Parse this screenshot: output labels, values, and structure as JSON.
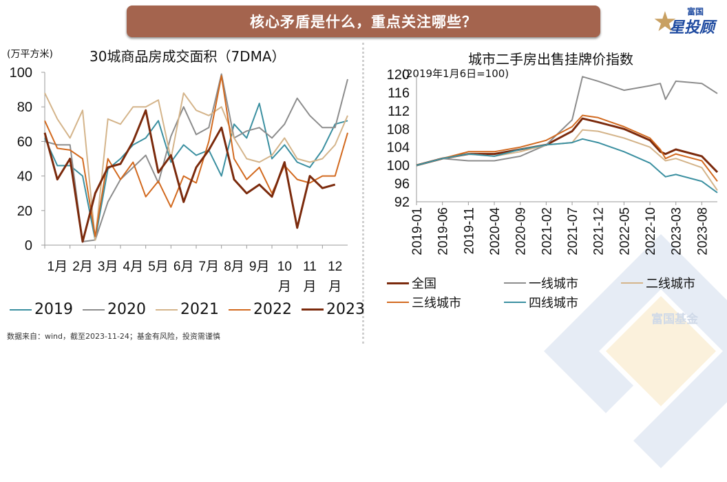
{
  "banner": {
    "title": "核心矛盾是什么，重点关注哪些？"
  },
  "logo": {
    "small": "富国",
    "big": "星投顾",
    "star_color": "#c8a062",
    "text_color": "#1e4aa0"
  },
  "watermark": {
    "text": "富国基金"
  },
  "footer": {
    "source": "数据来自：wind，截至2023-11-24；基金有风险，投资需谨慎"
  },
  "left_chart": {
    "unit": "(万平方米)",
    "title": "30城商品房成交面积（7DMA）"
  },
  "right_chart": {
    "title": "城市二手房出售挂牌价指数",
    "base_note": "(2019年1月6日=100)"
  },
  "chart_data": [
    {
      "type": "line",
      "title": "30城商品房成交面积（7DMA）",
      "ylabel": "(万平方米)",
      "xlabel": "",
      "ylim": [
        0,
        100
      ],
      "yticks": [
        0,
        20,
        40,
        60,
        80,
        100
      ],
      "x_tick_labels": [
        "1月",
        "2月",
        "3月",
        "4月",
        "5月",
        "6月",
        "7月",
        "8月",
        "9月",
        "10月",
        "11月",
        "12月"
      ],
      "x": [
        1,
        1.5,
        2,
        2.5,
        3,
        3.5,
        4,
        4.5,
        5,
        5.5,
        6,
        6.5,
        7,
        7.5,
        8,
        8.5,
        9,
        9.5,
        10,
        10.5,
        11,
        11.5,
        12,
        12.5,
        13
      ],
      "legend_position": "bottom",
      "series": [
        {
          "name": "2019",
          "color": "#3a8fa0",
          "values": [
            62,
            46,
            46,
            40,
            3,
            44,
            50,
            58,
            62,
            72,
            48,
            58,
            52,
            55,
            40,
            70,
            62,
            82,
            50,
            58,
            48,
            45,
            55,
            70,
            72
          ]
        },
        {
          "name": "2020",
          "color": "#8c8c8c",
          "values": [
            60,
            58,
            58,
            2,
            3,
            25,
            38,
            45,
            52,
            36,
            63,
            80,
            64,
            68,
            99,
            62,
            66,
            68,
            62,
            70,
            85,
            75,
            68,
            68,
            96
          ]
        },
        {
          "name": "2021",
          "color": "#d4b48a",
          "values": [
            88,
            73,
            62,
            78,
            3,
            73,
            70,
            80,
            80,
            84,
            50,
            88,
            78,
            75,
            80,
            62,
            50,
            48,
            52,
            62,
            50,
            48,
            50,
            58,
            75
          ]
        },
        {
          "name": "2022",
          "color": "#d2691e",
          "values": [
            72,
            56,
            55,
            50,
            5,
            50,
            38,
            48,
            28,
            37,
            22,
            40,
            36,
            60,
            98,
            50,
            38,
            45,
            30,
            46,
            38,
            36,
            40,
            40,
            65
          ]
        },
        {
          "name": "2023",
          "color": "#7b2a0c",
          "values": [
            65,
            38,
            50,
            2,
            30,
            45,
            47,
            60,
            78,
            42,
            52,
            25,
            45,
            55,
            68,
            38,
            30,
            35,
            28,
            48,
            10,
            40,
            33,
            35,
            null
          ]
        }
      ]
    },
    {
      "type": "line",
      "title": "城市二手房出售挂牌价指数",
      "ylabel": "(2019年1月6日=100)",
      "xlabel": "",
      "ylim": [
        92,
        120
      ],
      "yticks": [
        92,
        96,
        100,
        104,
        108,
        112,
        116,
        120
      ],
      "x_tick_labels": [
        "2019-01",
        "2019-06",
        "2019-11",
        "2020-04",
        "2020-09",
        "2021-02",
        "2021-07",
        "2021-12",
        "2022-05",
        "2022-10",
        "2023-03",
        "2023-08"
      ],
      "x": [
        "2019-01",
        "2019-06",
        "2019-11",
        "2020-04",
        "2020-09",
        "2021-02",
        "2021-07",
        "2021-09",
        "2021-12",
        "2022-05",
        "2022-10",
        "2022-12",
        "2023-01",
        "2023-03",
        "2023-08",
        "2023-11"
      ],
      "legend_position": "bottom",
      "series": [
        {
          "name": "全国",
          "color": "#7b2a0c",
          "values": [
            100,
            101.5,
            102.5,
            102.5,
            103.5,
            104.5,
            107.5,
            110.3,
            109.5,
            108,
            105.5,
            103,
            102.5,
            103.5,
            102,
            98.5
          ]
        },
        {
          "name": "一线城市",
          "color": "#8c8c8c",
          "values": [
            100,
            101.5,
            101,
            101,
            102,
            104.5,
            110,
            119.5,
            118.5,
            116.5,
            117.5,
            118,
            114.5,
            118.5,
            118,
            115.8
          ]
        },
        {
          "name": "二线城市",
          "color": "#d4b48a",
          "values": [
            100,
            101.5,
            102.5,
            102,
            103,
            104.5,
            105,
            107.8,
            107.5,
            106,
            104,
            102,
            101,
            101.5,
            99.5,
            94.5
          ]
        },
        {
          "name": "三线城市",
          "color": "#d2691e",
          "values": [
            100,
            101.5,
            103,
            103,
            104,
            105.5,
            108.5,
            111,
            110.5,
            108.5,
            106,
            103.5,
            101.5,
            102.5,
            101,
            96.5
          ]
        },
        {
          "name": "四线城市",
          "color": "#3a8fa0",
          "values": [
            100,
            101.5,
            102.5,
            102,
            103.5,
            104.5,
            105,
            105.8,
            105,
            103,
            100.5,
            98.5,
            97.5,
            98,
            96.5,
            94
          ]
        }
      ]
    }
  ]
}
